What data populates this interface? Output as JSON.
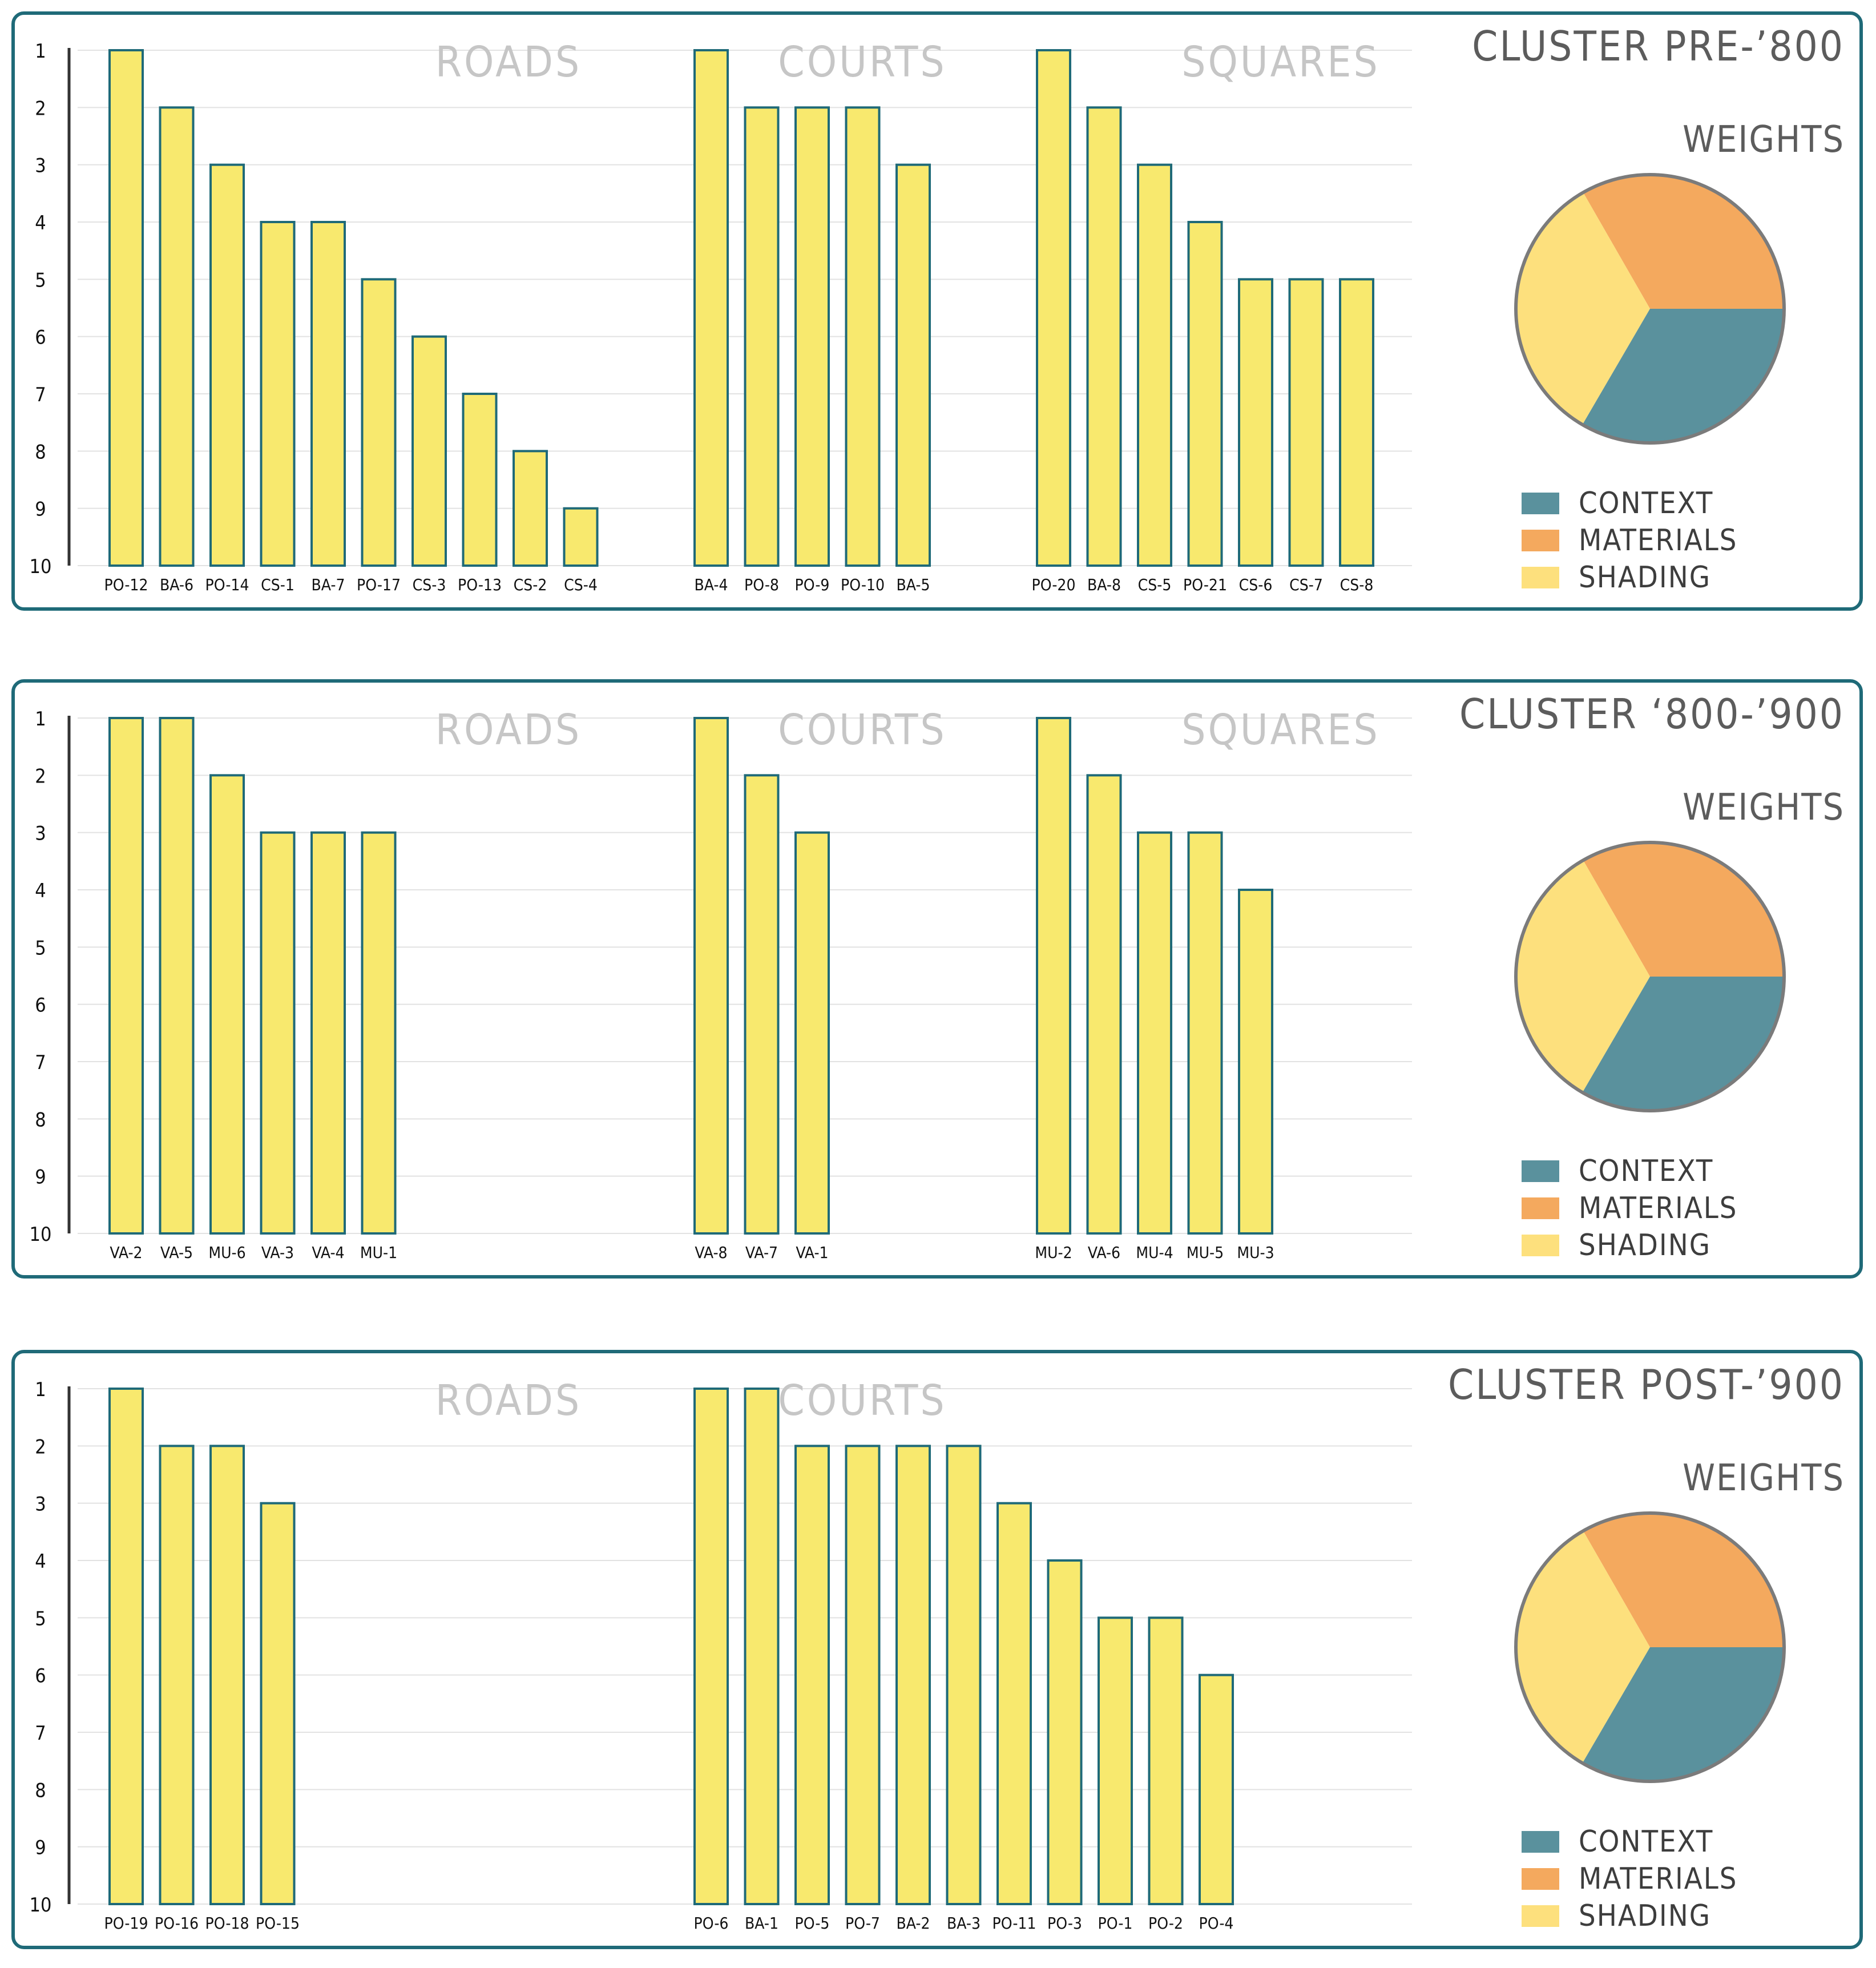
{
  "colors": {
    "frame": "#1f6a78",
    "bar_fill": "#f8e96e",
    "bar_stroke": "#1f6a78",
    "grid": "#e2e2e2",
    "section_label": "#c6c6c6",
    "title": "#5c5c5c",
    "legend_text": "#3d3d3d",
    "context": "#5a919d",
    "materials": "#f4a95e",
    "shading": "#fde07d",
    "pie_stroke": "#7b7b7b"
  },
  "chart_data": [
    {
      "type": "bar",
      "title": "CLUSTER PRE-’800",
      "ylim": [
        1,
        10
      ],
      "yticks": [
        "1",
        "2",
        "3",
        "4",
        "5",
        "6",
        "7",
        "8",
        "9",
        "10"
      ],
      "groups": [
        {
          "name": "ROADS",
          "categories": [
            "PO-12",
            "BA-6",
            "PO-14",
            "CS-1",
            "BA-7",
            "PO-17",
            "CS-3",
            "PO-13",
            "CS-2",
            "CS-4"
          ],
          "values": [
            1,
            2,
            3,
            4,
            4,
            5,
            6,
            7,
            8,
            9
          ]
        },
        {
          "name": "COURTS",
          "categories": [
            "BA-4",
            "PO-8",
            "PO-9",
            "PO-10",
            "BA-5"
          ],
          "values": [
            1,
            2,
            2,
            2,
            3
          ]
        },
        {
          "name": "SQUARES",
          "categories": [
            "PO-20",
            "BA-8",
            "CS-5",
            "PO-21",
            "CS-6",
            "CS-7",
            "CS-8"
          ],
          "values": [
            1,
            2,
            3,
            4,
            5,
            5,
            5
          ]
        }
      ],
      "pie": {
        "title": "WEIGHTS",
        "slices": [
          {
            "key": "materials",
            "label": "MATERIALS",
            "value": 33.3
          },
          {
            "key": "shading",
            "label": "SHADING",
            "value": 33.3
          },
          {
            "key": "context",
            "label": "CONTEXT",
            "value": 33.4
          }
        ]
      },
      "legend": [
        {
          "key": "context",
          "label": "CONTEXT"
        },
        {
          "key": "materials",
          "label": "MATERIALS"
        },
        {
          "key": "shading",
          "label": "SHADING"
        }
      ]
    },
    {
      "type": "bar",
      "title": "CLUSTER ‘800-’900",
      "ylim": [
        1,
        10
      ],
      "yticks": [
        "1",
        "2",
        "3",
        "4",
        "5",
        "6",
        "7",
        "8",
        "9",
        "10"
      ],
      "groups": [
        {
          "name": "ROADS",
          "categories": [
            "VA-2",
            "VA-5",
            "MU-6",
            "VA-3",
            "VA-4",
            "MU-1"
          ],
          "values": [
            1,
            1,
            2,
            3,
            3,
            3
          ]
        },
        {
          "name": "COURTS",
          "categories": [
            "VA-8",
            "VA-7",
            "VA-1"
          ],
          "values": [
            1,
            2,
            3
          ]
        },
        {
          "name": "SQUARES",
          "categories": [
            "MU-2",
            "VA-6",
            "MU-4",
            "MU-5",
            "MU-3"
          ],
          "values": [
            1,
            2,
            3,
            3,
            4
          ]
        }
      ],
      "pie": {
        "title": "WEIGHTS",
        "slices": [
          {
            "key": "materials",
            "label": "MATERIALS",
            "value": 33.3
          },
          {
            "key": "shading",
            "label": "SHADING",
            "value": 33.3
          },
          {
            "key": "context",
            "label": "CONTEXT",
            "value": 33.4
          }
        ]
      },
      "legend": [
        {
          "key": "context",
          "label": "CONTEXT"
        },
        {
          "key": "materials",
          "label": "MATERIALS"
        },
        {
          "key": "shading",
          "label": "SHADING"
        }
      ]
    },
    {
      "type": "bar",
      "title": "CLUSTER POST-’900",
      "ylim": [
        1,
        10
      ],
      "yticks": [
        "1",
        "2",
        "3",
        "4",
        "5",
        "6",
        "7",
        "8",
        "9",
        "10"
      ],
      "groups": [
        {
          "name": "ROADS",
          "categories": [
            "PO-19",
            "PO-16",
            "PO-18",
            "PO-15"
          ],
          "values": [
            1,
            2,
            2,
            3
          ]
        },
        {
          "name": "COURTS",
          "categories": [
            "PO-6",
            "BA-1",
            "PO-5",
            "PO-7",
            "BA-2",
            "BA-3",
            "PO-11",
            "PO-3",
            "PO-1",
            "PO-2",
            "PO-4"
          ],
          "values": [
            1,
            1,
            2,
            2,
            2,
            2,
            3,
            4,
            5,
            5,
            6
          ]
        }
      ],
      "pie": {
        "title": "WEIGHTS",
        "slices": [
          {
            "key": "materials",
            "label": "MATERIALS",
            "value": 33.3
          },
          {
            "key": "shading",
            "label": "SHADING",
            "value": 33.3
          },
          {
            "key": "context",
            "label": "CONTEXT",
            "value": 33.4
          }
        ]
      },
      "legend": [
        {
          "key": "context",
          "label": "CONTEXT"
        },
        {
          "key": "materials",
          "label": "MATERIALS"
        },
        {
          "key": "shading",
          "label": "SHADING"
        }
      ]
    }
  ]
}
